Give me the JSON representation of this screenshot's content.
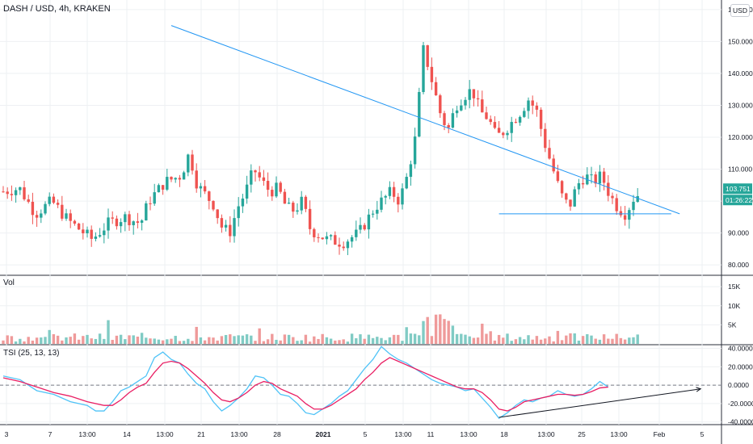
{
  "title": "DASH / USD, 4h, KRAKEN",
  "currency_badge": "USD",
  "volume_label": "Vol",
  "tsi_label": "TSI (25, 13, 13)",
  "price_badge": "103.751",
  "countdown_badge": "01:26:22",
  "colors": {
    "up": "#26a69a",
    "down": "#ef5350",
    "trendline": "#2196f3",
    "tsi": "#4fc3f7",
    "signal": "#e91e63",
    "arrow": "#131722"
  },
  "chart_data": [
    {
      "type": "candlestick",
      "name": "price",
      "y_ticks": [
        "160.000",
        "150.000",
        "140.000",
        "130.000",
        "120.000",
        "110.000",
        "100.000",
        "90.000",
        "80.000"
      ],
      "ylim": [
        77,
        163
      ],
      "x_ticks": [
        "3",
        "7",
        "13:00",
        "14",
        "13:00",
        "21",
        "13:00",
        "28",
        "2021",
        "5",
        "13:00",
        "11",
        "13:00",
        "18",
        "13:00",
        "25",
        "13:00",
        "Feb",
        "5"
      ],
      "last_price": 103.751,
      "annotations": [
        {
          "kind": "descending-trendline",
          "from": [
            40,
            155
          ],
          "to": [
            161,
            96
          ]
        },
        {
          "kind": "horizontal-support",
          "from": [
            118,
            96
          ],
          "to": [
            159,
            96
          ]
        }
      ]
    },
    {
      "type": "bar",
      "name": "volume",
      "y_ticks": [
        "15K",
        "10K",
        "5K"
      ],
      "ylim": [
        0,
        18000
      ]
    },
    {
      "type": "line",
      "name": "TSI",
      "params": "(25, 13, 13)",
      "y_ticks": [
        "40.0000",
        "20.0000",
        "0.0000",
        "-20.0000",
        "-40.0000"
      ],
      "ylim": [
        -42,
        44
      ],
      "series_points": {
        "tsi": [
          [
            0,
            10
          ],
          [
            4,
            6
          ],
          [
            8,
            -6
          ],
          [
            12,
            -10
          ],
          [
            16,
            -18
          ],
          [
            20,
            -22
          ],
          [
            22,
            -28
          ],
          [
            24,
            -28
          ],
          [
            26,
            -18
          ],
          [
            28,
            -6
          ],
          [
            30,
            -2
          ],
          [
            32,
            4
          ],
          [
            34,
            10
          ],
          [
            36,
            30
          ],
          [
            38,
            36
          ],
          [
            40,
            28
          ],
          [
            42,
            24
          ],
          [
            44,
            12
          ],
          [
            46,
            2
          ],
          [
            48,
            -4
          ],
          [
            50,
            -18
          ],
          [
            52,
            -28
          ],
          [
            54,
            -22
          ],
          [
            56,
            -14
          ],
          [
            58,
            -4
          ],
          [
            60,
            10
          ],
          [
            62,
            8
          ],
          [
            64,
            0
          ],
          [
            66,
            -10
          ],
          [
            68,
            -12
          ],
          [
            70,
            -20
          ],
          [
            72,
            -30
          ],
          [
            74,
            -32
          ],
          [
            76,
            -26
          ],
          [
            78,
            -20
          ],
          [
            80,
            -12
          ],
          [
            82,
            -6
          ],
          [
            84,
            6
          ],
          [
            86,
            18
          ],
          [
            88,
            28
          ],
          [
            90,
            42
          ],
          [
            92,
            34
          ],
          [
            94,
            28
          ],
          [
            96,
            24
          ],
          [
            98,
            18
          ],
          [
            100,
            12
          ],
          [
            102,
            6
          ],
          [
            104,
            2
          ],
          [
            106,
            0
          ],
          [
            108,
            -2
          ],
          [
            110,
            -6
          ],
          [
            112,
            -4
          ],
          [
            114,
            -14
          ],
          [
            116,
            -24
          ],
          [
            118,
            -36
          ],
          [
            120,
            -30
          ],
          [
            122,
            -22
          ],
          [
            124,
            -16
          ],
          [
            126,
            -18
          ],
          [
            128,
            -14
          ],
          [
            130,
            -12
          ],
          [
            132,
            -6
          ],
          [
            134,
            -10
          ],
          [
            136,
            -12
          ],
          [
            138,
            -10
          ],
          [
            140,
            -4
          ],
          [
            142,
            4
          ],
          [
            144,
            -2
          ]
        ],
        "signal": [
          [
            0,
            8
          ],
          [
            4,
            4
          ],
          [
            8,
            -2
          ],
          [
            12,
            -8
          ],
          [
            16,
            -12
          ],
          [
            20,
            -18
          ],
          [
            24,
            -22
          ],
          [
            26,
            -22
          ],
          [
            28,
            -16
          ],
          [
            30,
            -8
          ],
          [
            32,
            -2
          ],
          [
            34,
            2
          ],
          [
            36,
            14
          ],
          [
            38,
            24
          ],
          [
            40,
            26
          ],
          [
            42,
            24
          ],
          [
            44,
            18
          ],
          [
            46,
            10
          ],
          [
            48,
            2
          ],
          [
            50,
            -8
          ],
          [
            52,
            -16
          ],
          [
            54,
            -18
          ],
          [
            56,
            -14
          ],
          [
            58,
            -8
          ],
          [
            60,
            0
          ],
          [
            62,
            4
          ],
          [
            64,
            2
          ],
          [
            66,
            -4
          ],
          [
            68,
            -8
          ],
          [
            70,
            -12
          ],
          [
            72,
            -20
          ],
          [
            74,
            -26
          ],
          [
            76,
            -26
          ],
          [
            78,
            -22
          ],
          [
            80,
            -16
          ],
          [
            82,
            -10
          ],
          [
            84,
            -4
          ],
          [
            86,
            6
          ],
          [
            88,
            14
          ],
          [
            90,
            24
          ],
          [
            92,
            30
          ],
          [
            94,
            26
          ],
          [
            96,
            22
          ],
          [
            98,
            18
          ],
          [
            100,
            14
          ],
          [
            102,
            10
          ],
          [
            104,
            6
          ],
          [
            106,
            2
          ],
          [
            108,
            -2
          ],
          [
            110,
            -4
          ],
          [
            112,
            -4
          ],
          [
            114,
            -8
          ],
          [
            116,
            -16
          ],
          [
            118,
            -26
          ],
          [
            120,
            -28
          ],
          [
            122,
            -24
          ],
          [
            124,
            -18
          ],
          [
            126,
            -16
          ],
          [
            128,
            -14
          ],
          [
            130,
            -12
          ],
          [
            132,
            -10
          ],
          [
            134,
            -10
          ],
          [
            136,
            -11
          ],
          [
            138,
            -10
          ],
          [
            140,
            -7
          ],
          [
            142,
            -3
          ],
          [
            144,
            -2
          ]
        ]
      },
      "annotations": [
        {
          "kind": "rising-arrow",
          "from": [
            118,
            -35
          ],
          "to": [
            166,
            -4
          ]
        }
      ]
    }
  ]
}
